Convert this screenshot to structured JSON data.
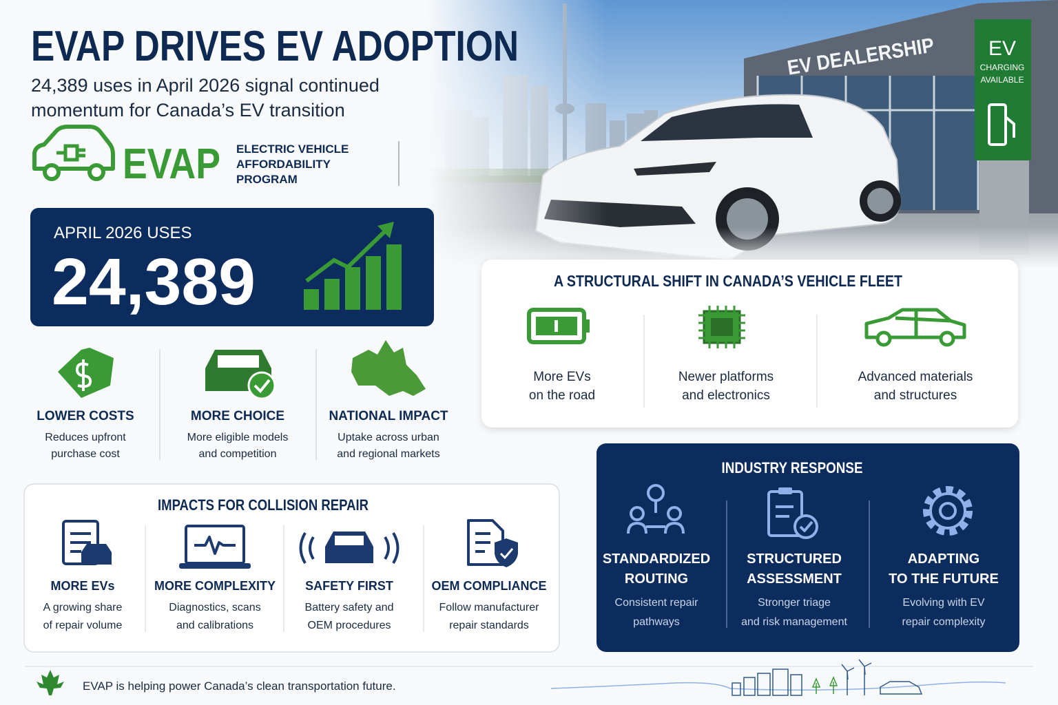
{
  "header": {
    "title": "EVAP DRIVES EV ADOPTION",
    "subtitle_lines": [
      "24,389 uses in April 2026 signal continued",
      "momentum for Canada’s EV transition"
    ]
  },
  "logo": {
    "word": "EVAP",
    "lines": [
      "ELECTRIC VEHICLE",
      "AFFORDABILITY",
      "PROGRAM"
    ]
  },
  "stat": {
    "label": "APRIL 2026 USES",
    "value": "24,389"
  },
  "benefits": [
    {
      "title": "LOWER COSTS",
      "lines": [
        "Reduces upfront",
        "purchase cost"
      ]
    },
    {
      "title": "MORE CHOICE",
      "lines": [
        "More eligible models",
        "and competition"
      ]
    },
    {
      "title": "NATIONAL IMPACT",
      "lines": [
        "Uptake across urban",
        "and regional markets"
      ]
    }
  ],
  "photo": {
    "dealership": "EV DEALERSHIP",
    "sign": [
      "EV",
      "CHARGING",
      "AVAILABLE"
    ]
  },
  "fleet": {
    "title": "A STRUCTURAL SHIFT IN CANADA’S VEHICLE FLEET",
    "items": [
      {
        "lines": [
          "More EVs",
          "on the road"
        ]
      },
      {
        "lines": [
          "Newer platforms",
          "and electronics"
        ]
      },
      {
        "lines": [
          "Advanced materials",
          "and structures"
        ]
      }
    ]
  },
  "collision": {
    "title": "IMPACTS FOR COLLISION REPAIR",
    "items": [
      {
        "title": "MORE EVs",
        "lines": [
          "A growing share",
          "of repair volume"
        ]
      },
      {
        "title": "MORE COMPLEXITY",
        "lines": [
          "Diagnostics, scans",
          "and calibrations"
        ]
      },
      {
        "title": "SAFETY FIRST",
        "lines": [
          "Battery safety and",
          "OEM procedures"
        ]
      },
      {
        "title": "OEM COMPLIANCE",
        "lines": [
          "Follow manufacturer",
          "repair standards"
        ]
      }
    ]
  },
  "industry": {
    "title": "INDUSTRY RESPONSE",
    "items": [
      {
        "title_lines": [
          "STANDARDIZED",
          "ROUTING"
        ],
        "lines": [
          "Consistent repair",
          "pathways"
        ]
      },
      {
        "title_lines": [
          "STRUCTURED",
          "ASSESSMENT"
        ],
        "lines": [
          "Stronger triage",
          "and risk management"
        ]
      },
      {
        "title_lines": [
          "ADAPTING",
          "TO THE FUTURE"
        ],
        "lines": [
          "Evolving with EV",
          "repair complexity"
        ]
      }
    ]
  },
  "footer": {
    "text": "EVAP is helping power Canada’s clean transportation future."
  }
}
